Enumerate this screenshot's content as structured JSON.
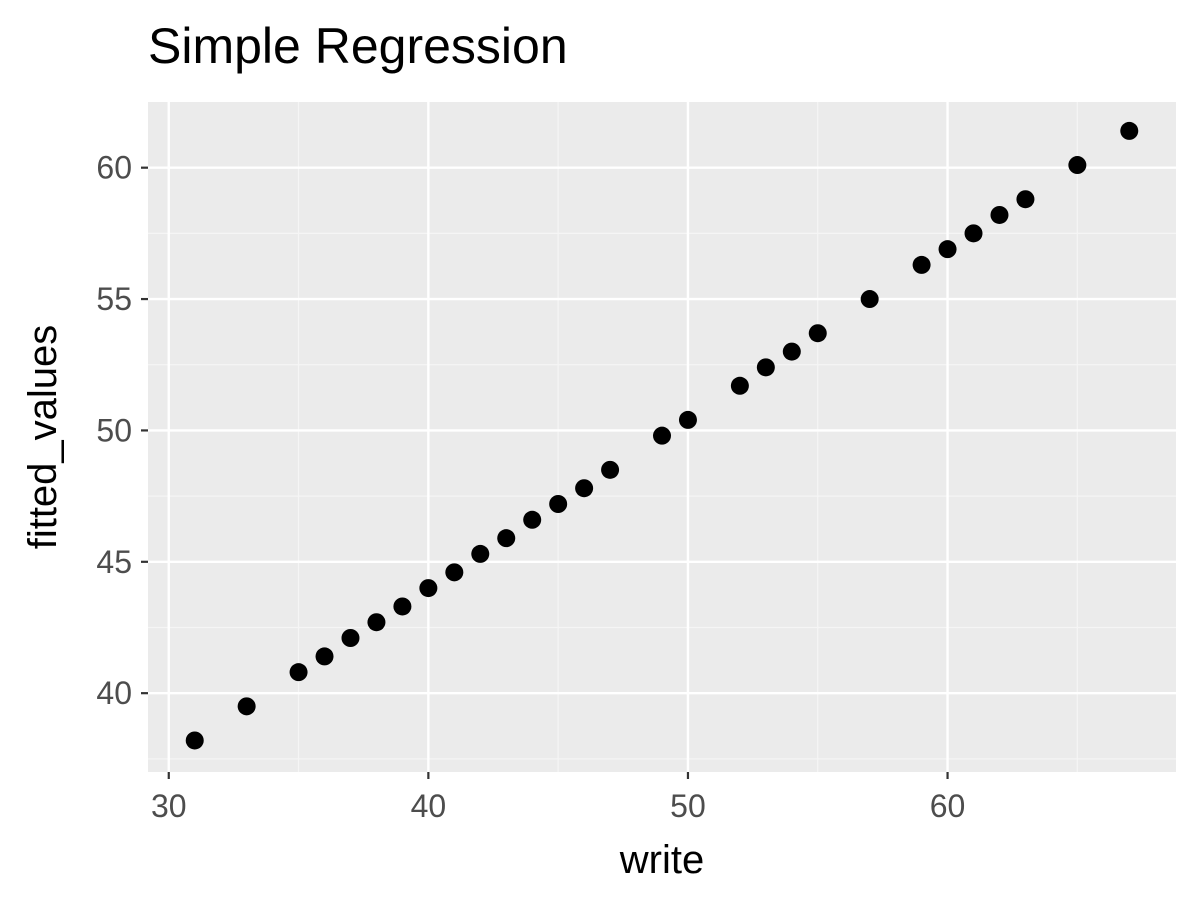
{
  "chart_data": {
    "type": "scatter",
    "title": "Simple Regression",
    "xlabel": "write",
    "ylabel": "fitted_values",
    "xlim": [
      29.2,
      68.8
    ],
    "ylim": [
      37.0,
      62.5
    ],
    "x_ticks": [
      30,
      40,
      50,
      60
    ],
    "y_ticks": [
      40,
      45,
      50,
      55,
      60
    ],
    "x_tick_labels": [
      "30",
      "40",
      "50",
      "60"
    ],
    "y_tick_labels": [
      "40",
      "45",
      "50",
      "55",
      "60"
    ],
    "grid": true,
    "legend": "none",
    "colors": {
      "panel_background": "#ebebeb",
      "grid_major": "#ffffff",
      "grid_minor": "#f5f5f5",
      "point": "#000000",
      "tick": "#333333"
    },
    "points": [
      {
        "x": 31,
        "y": 38.2
      },
      {
        "x": 33,
        "y": 39.5
      },
      {
        "x": 35,
        "y": 40.8
      },
      {
        "x": 36,
        "y": 41.4
      },
      {
        "x": 37,
        "y": 42.1
      },
      {
        "x": 38,
        "y": 42.7
      },
      {
        "x": 39,
        "y": 43.3
      },
      {
        "x": 40,
        "y": 44.0
      },
      {
        "x": 41,
        "y": 44.6
      },
      {
        "x": 42,
        "y": 45.3
      },
      {
        "x": 43,
        "y": 45.9
      },
      {
        "x": 44,
        "y": 46.6
      },
      {
        "x": 45,
        "y": 47.2
      },
      {
        "x": 46,
        "y": 47.8
      },
      {
        "x": 47,
        "y": 48.5
      },
      {
        "x": 49,
        "y": 49.8
      },
      {
        "x": 50,
        "y": 50.4
      },
      {
        "x": 52,
        "y": 51.7
      },
      {
        "x": 53,
        "y": 52.4
      },
      {
        "x": 54,
        "y": 53.0
      },
      {
        "x": 55,
        "y": 53.7
      },
      {
        "x": 57,
        "y": 55.0
      },
      {
        "x": 59,
        "y": 56.3
      },
      {
        "x": 60,
        "y": 56.9
      },
      {
        "x": 61,
        "y": 57.5
      },
      {
        "x": 62,
        "y": 58.2
      },
      {
        "x": 63,
        "y": 58.8
      },
      {
        "x": 65,
        "y": 60.1
      },
      {
        "x": 67,
        "y": 61.4
      }
    ]
  }
}
